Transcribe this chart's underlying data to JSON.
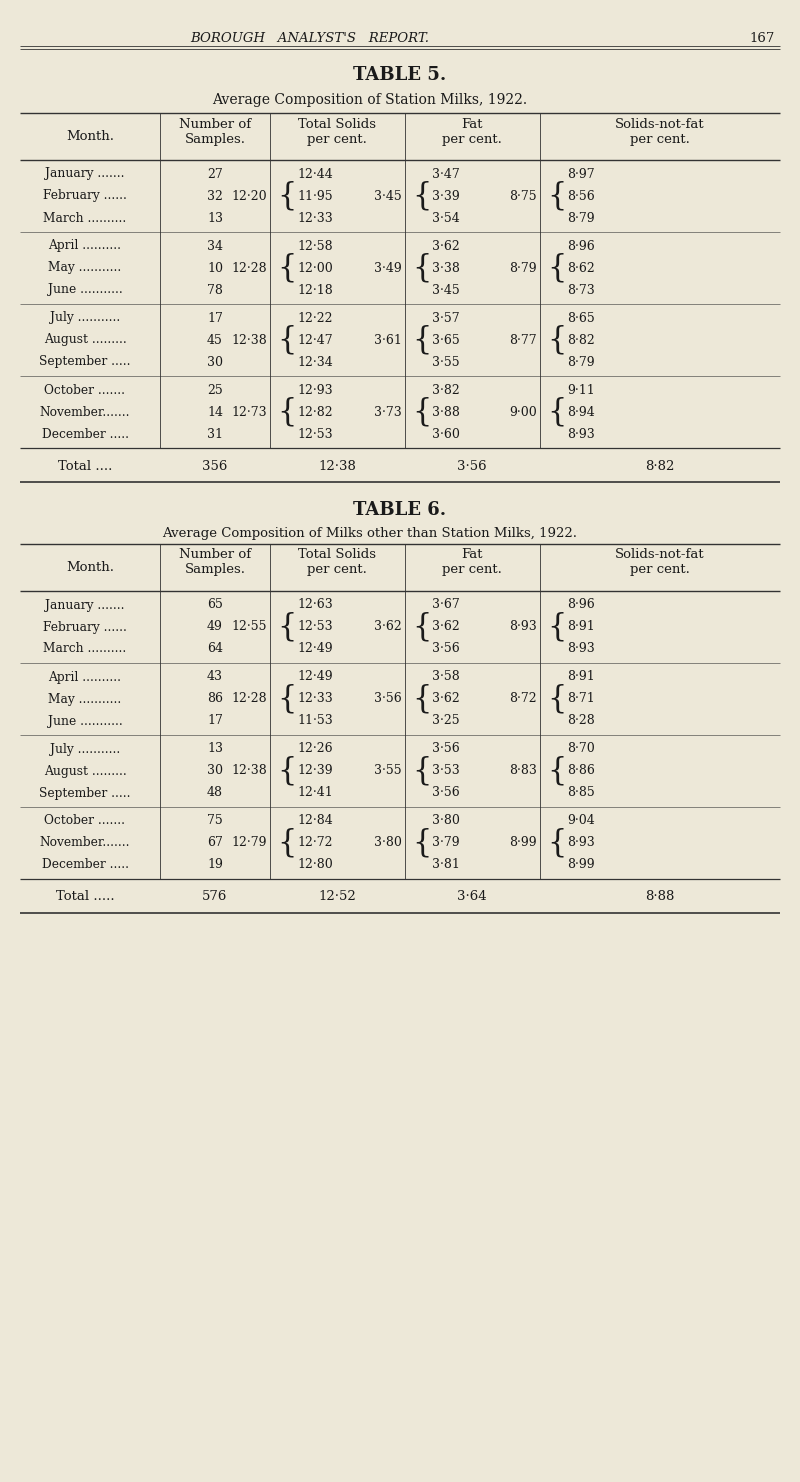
{
  "bg_color": "#ede8d8",
  "page_header": "BOROUGH   ANALYST'S   REPORT.",
  "page_number": "167",
  "table5": {
    "title": "TABLE 5.",
    "subtitle": "Average Composition of Station Milks, 1922.",
    "row_groups": [
      {
        "months": [
          "January .......",
          "February ......",
          "March .........."
        ],
        "samples": [
          "27",
          "32",
          "13"
        ],
        "ts_avg": "12·20",
        "ts_vals": [
          "12·44",
          "11·95",
          "12·33"
        ],
        "fat_avg": "3·45",
        "fat_vals": [
          "3·47",
          "3·39",
          "3·54"
        ],
        "snf_avg": "8·75",
        "snf_vals": [
          "8·97",
          "8·56",
          "8·79"
        ]
      },
      {
        "months": [
          "April ..........",
          "May ...........",
          "June ..........."
        ],
        "samples": [
          "34",
          "10",
          "78"
        ],
        "ts_avg": "12·28",
        "ts_vals": [
          "12·58",
          "12·00",
          "12·18"
        ],
        "fat_avg": "3·49",
        "fat_vals": [
          "3·62",
          "3·38",
          "3·45"
        ],
        "snf_avg": "8·79",
        "snf_vals": [
          "8·96",
          "8·62",
          "8·73"
        ]
      },
      {
        "months": [
          "July ...........",
          "August .........",
          "September ....."
        ],
        "samples": [
          "17",
          "45",
          "30"
        ],
        "ts_avg": "12·38",
        "ts_vals": [
          "12·22",
          "12·47",
          "12·34"
        ],
        "fat_avg": "3·61",
        "fat_vals": [
          "3·57",
          "3·65",
          "3·55"
        ],
        "snf_avg": "8·77",
        "snf_vals": [
          "8·65",
          "8·82",
          "8·79"
        ]
      },
      {
        "months": [
          "October .......",
          "November.......",
          "December ....."
        ],
        "samples": [
          "25",
          "14",
          "31"
        ],
        "ts_avg": "12·73",
        "ts_vals": [
          "12·93",
          "12·82",
          "12·53"
        ],
        "fat_avg": "3·73",
        "fat_vals": [
          "3·82",
          "3·88",
          "3·60"
        ],
        "snf_avg": "9·00",
        "snf_vals": [
          "9·11",
          "8·94",
          "8·93"
        ]
      }
    ],
    "total": {
      "label": "Total ....",
      "samples": "356",
      "ts": "12·38",
      "fat": "3·56",
      "snf": "8·82"
    }
  },
  "table6": {
    "title": "TABLE 6.",
    "subtitle": "Average Composition of Milks other than Station Milks, 1922.",
    "row_groups": [
      {
        "months": [
          "January .......",
          "February ......",
          "March .........."
        ],
        "samples": [
          "65",
          "49",
          "64"
        ],
        "ts_avg": "12·55",
        "ts_vals": [
          "12·63",
          "12·53",
          "12·49"
        ],
        "fat_avg": "3·62",
        "fat_vals": [
          "3·67",
          "3·62",
          "3·56"
        ],
        "snf_avg": "8·93",
        "snf_vals": [
          "8·96",
          "8·91",
          "8·93"
        ]
      },
      {
        "months": [
          "April ..........",
          "May ...........",
          "June ..........."
        ],
        "samples": [
          "43",
          "86",
          "17"
        ],
        "ts_avg": "12·28",
        "ts_vals": [
          "12·49",
          "12·33",
          "11·53"
        ],
        "fat_avg": "3·56",
        "fat_vals": [
          "3·58",
          "3·62",
          "3·25"
        ],
        "snf_avg": "8·72",
        "snf_vals": [
          "8·91",
          "8·71",
          "8·28"
        ]
      },
      {
        "months": [
          "July ...........",
          "August .........",
          "September ....."
        ],
        "samples": [
          "13",
          "30",
          "48"
        ],
        "ts_avg": "12·38",
        "ts_vals": [
          "12·26",
          "12·39",
          "12·41"
        ],
        "fat_avg": "3·55",
        "fat_vals": [
          "3·56",
          "3·53",
          "3·56"
        ],
        "snf_avg": "8·83",
        "snf_vals": [
          "8·70",
          "8·86",
          "8·85"
        ]
      },
      {
        "months": [
          "October .......",
          "November.......",
          "December ....."
        ],
        "samples": [
          "75",
          "67",
          "19"
        ],
        "ts_avg": "12·79",
        "ts_vals": [
          "12·84",
          "12·72",
          "12·80"
        ],
        "fat_avg": "3·80",
        "fat_vals": [
          "3·80",
          "3·79",
          "3·81"
        ],
        "snf_avg": "8·99",
        "snf_vals": [
          "9·04",
          "8·93",
          "8·99"
        ]
      }
    ],
    "total": {
      "label": "Total .....",
      "samples": "576",
      "ts": "12·52",
      "fat": "3·64",
      "snf": "8·88"
    }
  }
}
